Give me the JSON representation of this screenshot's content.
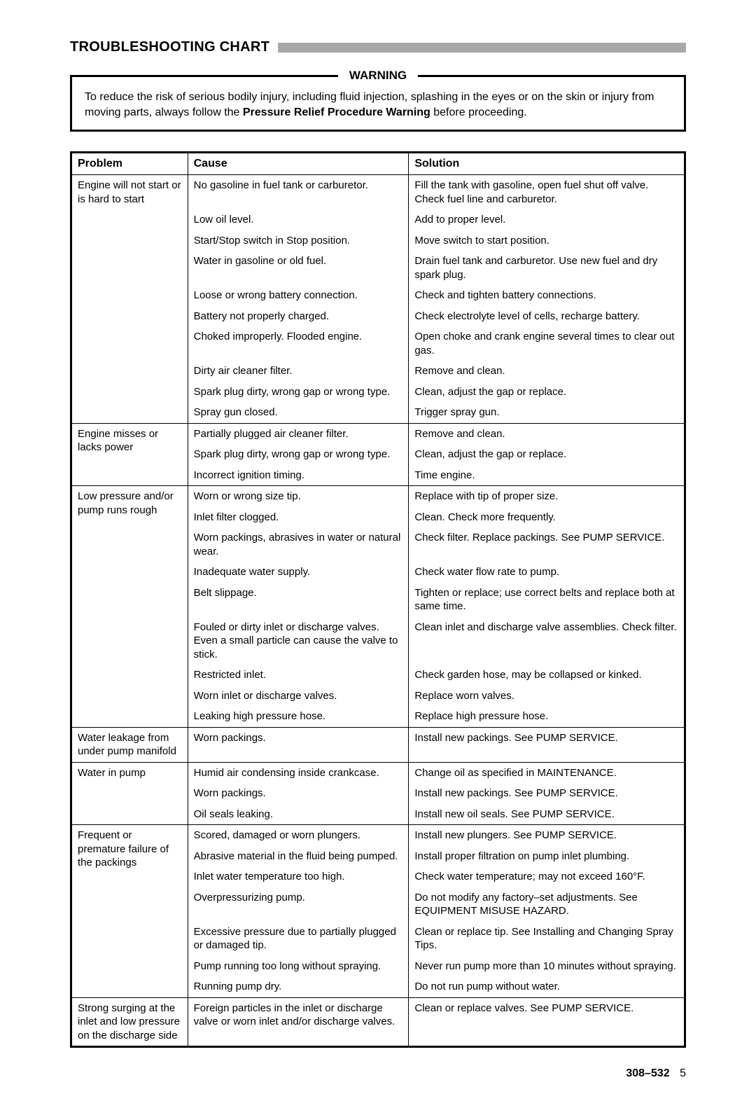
{
  "title": "TROUBLESHOOTING CHART",
  "warning": {
    "label": "WARNING",
    "pre": "To reduce the risk of serious bodily injury, including fluid injection, splashing in the eyes or on the skin or injury from moving parts, always follow the ",
    "bold": "Pressure Relief Procedure Warning",
    "post": " before proceeding."
  },
  "headers": {
    "problem": "Problem",
    "cause": "Cause",
    "solution": "Solution"
  },
  "sections": [
    {
      "problem": "Engine will not start or is hard to start",
      "rows": [
        {
          "cause": "No gasoline in fuel tank or carburetor.",
          "solution": "Fill the tank with gasoline, open fuel shut off valve. Check fuel line and carburetor."
        },
        {
          "cause": "Low oil level.",
          "solution": "Add to proper level."
        },
        {
          "cause": "Start/Stop switch in Stop position.",
          "solution": "Move switch to start position."
        },
        {
          "cause": "Water in gasoline or old fuel.",
          "solution": "Drain fuel tank and carburetor. Use new fuel and dry spark plug."
        },
        {
          "cause": "Loose or wrong battery connection.",
          "solution": "Check and tighten battery connections."
        },
        {
          "cause": "Battery not properly charged.",
          "solution": "Check electrolyte level of cells, recharge battery."
        },
        {
          "cause": "Choked improperly. Flooded engine.",
          "solution": "Open choke and crank engine several times to clear out gas."
        },
        {
          "cause": "Dirty air cleaner filter.",
          "solution": "Remove and clean."
        },
        {
          "cause": "Spark plug dirty, wrong gap or wrong type.",
          "solution": "Clean, adjust the gap or replace."
        },
        {
          "cause": "Spray gun closed.",
          "solution": "Trigger spray gun."
        }
      ]
    },
    {
      "problem": "Engine misses or lacks power",
      "rows": [
        {
          "cause": "Partially plugged air cleaner filter.",
          "solution": "Remove and clean."
        },
        {
          "cause": "Spark plug dirty, wrong gap or wrong type.",
          "solution": "Clean, adjust the gap or replace."
        },
        {
          "cause": "Incorrect ignition timing.",
          "solution": "Time engine."
        }
      ]
    },
    {
      "problem": "Low pressure and/or pump runs rough",
      "rows": [
        {
          "cause": "Worn or wrong size tip.",
          "solution": "Replace with tip of proper size."
        },
        {
          "cause": "Inlet filter clogged.",
          "solution": "Clean. Check more frequently."
        },
        {
          "cause": "Worn packings, abrasives in water or natural wear.",
          "solution": "Check filter. Replace packings. See PUMP SERVICE."
        },
        {
          "cause": "Inadequate water supply.",
          "solution": "Check water flow rate to pump."
        },
        {
          "cause": "Belt slippage.",
          "solution": "Tighten or replace; use correct belts and replace both at same time."
        },
        {
          "cause": "Fouled or dirty inlet or discharge valves. Even a small particle can cause the valve to stick.",
          "solution": "Clean inlet and discharge valve assemblies. Check filter."
        },
        {
          "cause": "Restricted inlet.",
          "solution": "Check garden hose, may be collapsed or kinked."
        },
        {
          "cause": "Worn inlet or discharge valves.",
          "solution": "Replace worn valves."
        },
        {
          "cause": "Leaking high pressure hose.",
          "solution": "Replace high pressure hose."
        }
      ]
    },
    {
      "problem": "Water leakage from under pump manifold",
      "rows": [
        {
          "cause": "Worn packings.",
          "solution": "Install new packings. See PUMP SERVICE."
        }
      ]
    },
    {
      "problem": "Water in pump",
      "rows": [
        {
          "cause": "Humid air condensing inside crankcase.",
          "solution": "Change oil as specified in MAINTENANCE."
        },
        {
          "cause": "Worn packings.",
          "solution": "Install new packings. See PUMP SERVICE."
        },
        {
          "cause": "Oil seals leaking.",
          "solution": "Install new oil seals. See PUMP SERVICE."
        }
      ]
    },
    {
      "problem": "Frequent or premature failure of the packings",
      "rows": [
        {
          "cause": "Scored, damaged or worn plungers.",
          "solution": "Install new plungers. See PUMP SERVICE."
        },
        {
          "cause": "Abrasive material in the fluid being pumped.",
          "solution": "Install proper filtration on pump inlet plumbing."
        },
        {
          "cause": "Inlet water temperature too high.",
          "solution": "Check water temperature; may not exceed 160°F."
        },
        {
          "cause": "Overpressurizing pump.",
          "solution": "Do not modify any factory–set adjustments. See EQUIPMENT MISUSE HAZARD."
        },
        {
          "cause": "Excessive pressure due to partially plugged or damaged tip.",
          "solution": "Clean or replace tip. See Installing and Changing Spray Tips."
        },
        {
          "cause": "Pump running too long without spraying.",
          "solution": "Never run pump more than 10 minutes without spraying."
        },
        {
          "cause": "Running pump dry.",
          "solution": "Do not run pump without water."
        }
      ]
    },
    {
      "problem": "Strong surging at the inlet and low pressure on the discharge side",
      "rows": [
        {
          "cause": "Foreign particles in the inlet or discharge valve or worn inlet and/or discharge valves.",
          "solution": "Clean or replace valves. See PUMP SERVICE."
        }
      ]
    }
  ],
  "footer": {
    "docnum": "308–532",
    "pagenum": "5"
  }
}
